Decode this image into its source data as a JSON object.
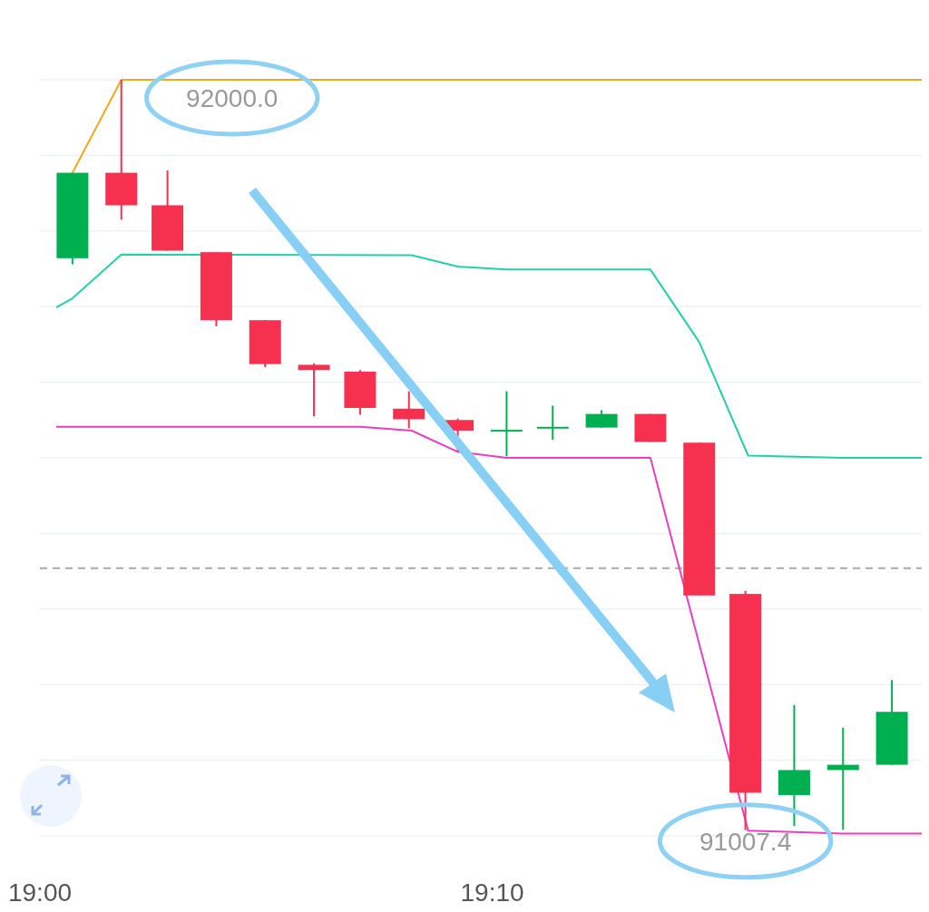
{
  "chart_data": {
    "type": "candlestick",
    "x": [
      19.012,
      19.03,
      19.047,
      19.065,
      19.083,
      19.101,
      19.118,
      19.136,
      19.154,
      19.172,
      19.189,
      19.207,
      19.225,
      19.243,
      19.26,
      19.278,
      19.296,
      19.314
    ],
    "ohlc": [
      [
        91764,
        91877,
        91756,
        91877
      ],
      [
        91877,
        92000,
        91815,
        91834
      ],
      [
        91834,
        91880,
        91774,
        91774
      ],
      [
        91772,
        91772,
        91674,
        91682
      ],
      [
        91682,
        91682,
        91620,
        91624
      ],
      [
        91623,
        91625,
        91555,
        91616
      ],
      [
        91614,
        91616,
        91557,
        91566
      ],
      [
        91565,
        91588,
        91539,
        91551
      ],
      [
        91550,
        91552,
        91508,
        91536
      ],
      [
        91535,
        91588,
        91502,
        91537
      ],
      [
        91540,
        91569,
        91524,
        91541
      ],
      [
        91540,
        91563,
        91540,
        91558
      ],
      [
        91558,
        91558,
        91521,
        91521
      ],
      [
        91520,
        91520,
        91318,
        91318
      ],
      [
        91320,
        91324,
        91007.4,
        91057
      ],
      [
        91054,
        91173,
        91013,
        91087
      ],
      [
        91087,
        91143,
        91008,
        91094
      ],
      [
        91094,
        91206,
        91094,
        91164
      ]
    ],
    "colors": [
      "#00b050",
      "#f5314f",
      "#f5314f",
      "#f5314f",
      "#f5314f",
      "#f5314f",
      "#f5314f",
      "#f5314f",
      "#f5314f",
      "#00b050",
      "#00b050",
      "#00b050",
      "#f5314f",
      "#f5314f",
      "#f5314f",
      "#00b050",
      "#00b050",
      "#00b050"
    ],
    "series": [
      {
        "type": "line",
        "color": "#f2a81d",
        "x": [
          19.012,
          19.03,
          19.325
        ],
        "values": [
          91877,
          92000,
          92000
        ]
      },
      {
        "type": "line",
        "color": "#25cfa8",
        "x": [
          19.006,
          19.012,
          19.03,
          19.137,
          19.154,
          19.172,
          19.225,
          19.243,
          19.261,
          19.296,
          19.325
        ],
        "values": [
          91699,
          91711,
          91769,
          91768,
          91753,
          91749,
          91749,
          91653,
          91503,
          91500,
          91500
        ]
      },
      {
        "type": "line",
        "color": "#e83fc0",
        "x": [
          19.006,
          19.118,
          19.137,
          19.154,
          19.172,
          19.225,
          19.261,
          19.278,
          19.296,
          19.325
        ],
        "values": [
          91541,
          91541,
          91536,
          91508,
          91500,
          91500,
          91007,
          91005,
          91003,
          91003
        ]
      }
    ],
    "xlim": [
      19.0,
      19.325
    ],
    "xticks": [
      {
        "value": 19.0,
        "label": "19:00"
      },
      {
        "value": 19.1667,
        "label": "19:10"
      }
    ],
    "yticks": [
      {
        "value": 91000,
        "label": null
      },
      {
        "value": 91100,
        "label": null
      },
      {
        "value": 91200,
        "label": null
      },
      {
        "value": 91300,
        "label": null
      },
      {
        "value": 91400,
        "label": null
      },
      {
        "value": 91500,
        "label": null
      },
      {
        "value": 91600,
        "label": null
      },
      {
        "value": 91700,
        "label": null
      },
      {
        "value": 91800,
        "label": null
      },
      {
        "value": 91900,
        "label": null
      },
      {
        "value": 92000,
        "label": null
      }
    ],
    "tick_labels": "x",
    "grid": "y",
    "ref_lines": [
      {
        "axis": "y",
        "value": 91354,
        "color": "#aaaaaa",
        "line_style": "dashed"
      }
    ],
    "annotations": [
      {
        "text": "92000.0",
        "x": 19.03,
        "y": 92000
      },
      {
        "text": "91007.4",
        "x": 19.26,
        "y": 91007.4
      }
    ]
  }
}
